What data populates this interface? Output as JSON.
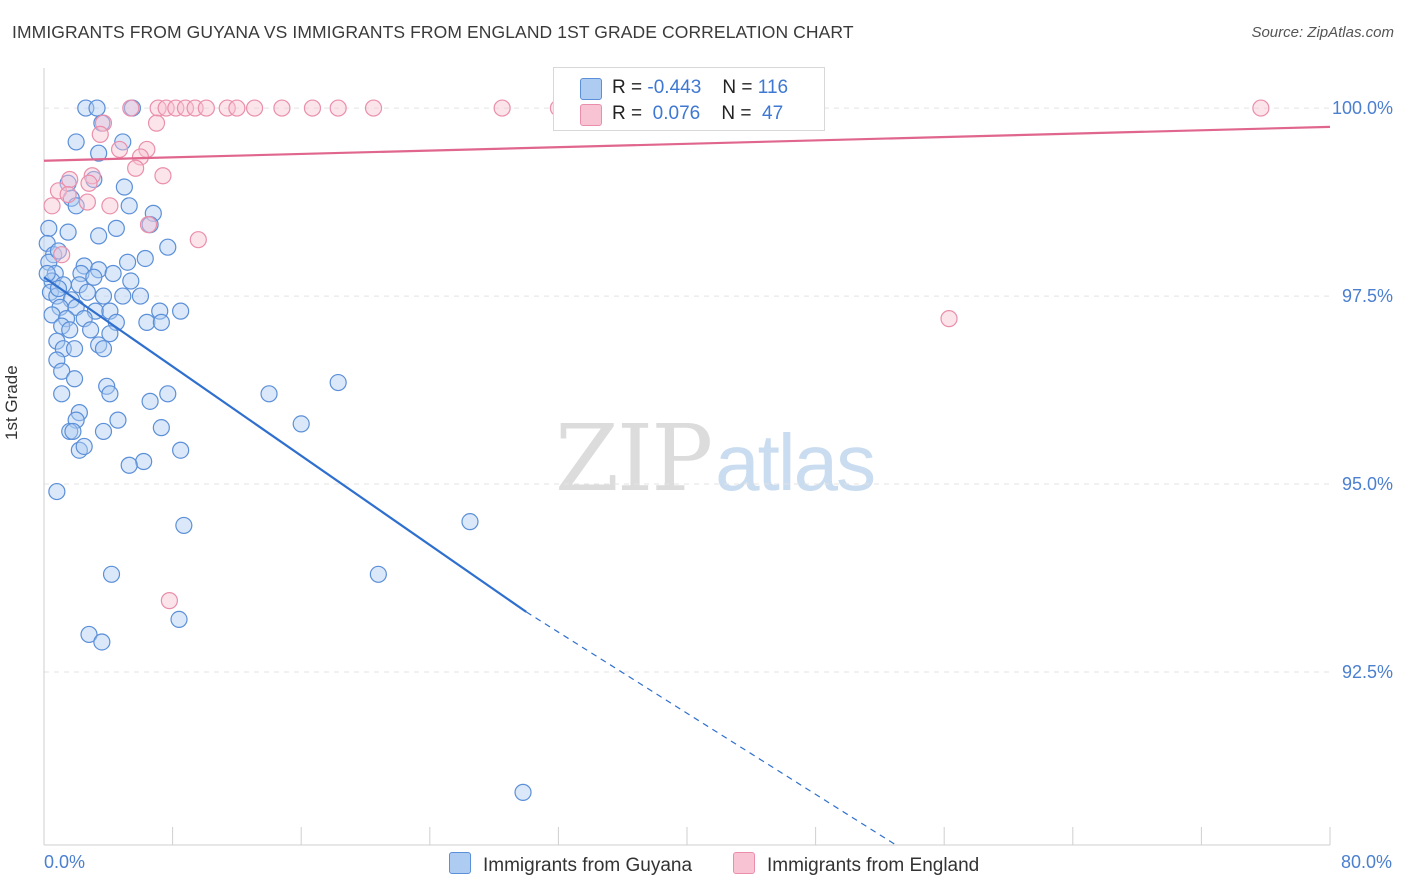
{
  "title": "IMMIGRANTS FROM GUYANA VS IMMIGRANTS FROM ENGLAND 1ST GRADE CORRELATION CHART",
  "source": "Source: ZipAtlas.com",
  "watermark": {
    "zip": "ZIP",
    "atlas": "atlas"
  },
  "legend": {
    "r_label": "R =",
    "n_label": "N =",
    "series": [
      {
        "name": "Immigrants from Guyana",
        "r": "-0.443",
        "n": "116"
      },
      {
        "name": "Immigrants from England",
        "r": "0.076",
        "n": "47"
      }
    ]
  },
  "colors": {
    "blue_fill": "#aecbf2",
    "blue_stroke": "#5b8fd8",
    "blue_line": "#2f6fce",
    "pink_fill": "#f8c3d2",
    "pink_stroke": "#ea8fab",
    "pink_line": "#e0668e",
    "tick_label": "#4b7fcf",
    "grid": "#e3e3e3"
  },
  "chart_data": {
    "type": "scatter",
    "xlabel": "",
    "ylabel": "1st Grade",
    "xlim": [
      0,
      80
    ],
    "ylim": [
      90.2,
      100.4
    ],
    "x_tick_labels": {
      "min": "0.0%",
      "max": "80.0%"
    },
    "y_ticks": [
      {
        "value": 100.0,
        "label": "100.0%"
      },
      {
        "value": 97.5,
        "label": "97.5%"
      },
      {
        "value": 95.0,
        "label": "95.0%"
      },
      {
        "value": 92.5,
        "label": "92.5%"
      }
    ],
    "series": [
      {
        "name": "Immigrants from Guyana",
        "color": "blue",
        "trend": {
          "x0": 0.0,
          "y0": 97.75,
          "x1": 30.0,
          "y1": 93.3,
          "dash_to_x": 53.0,
          "dash_to_y": 90.2
        },
        "points": [
          [
            2.6,
            100.0
          ],
          [
            3.3,
            100.0
          ],
          [
            5.5,
            100.0
          ],
          [
            3.6,
            99.8
          ],
          [
            2.0,
            99.55
          ],
          [
            4.9,
            99.55
          ],
          [
            3.4,
            99.4
          ],
          [
            3.1,
            99.05
          ],
          [
            1.5,
            99.0
          ],
          [
            5.0,
            98.95
          ],
          [
            1.7,
            98.8
          ],
          [
            2.0,
            98.7
          ],
          [
            5.3,
            98.7
          ],
          [
            6.8,
            98.6
          ],
          [
            0.3,
            98.4
          ],
          [
            3.4,
            98.3
          ],
          [
            4.5,
            98.4
          ],
          [
            1.5,
            98.35
          ],
          [
            6.6,
            98.45
          ],
          [
            0.2,
            98.2
          ],
          [
            0.6,
            98.05
          ],
          [
            7.7,
            98.15
          ],
          [
            0.3,
            97.95
          ],
          [
            2.5,
            97.9
          ],
          [
            5.2,
            97.95
          ],
          [
            3.4,
            97.85
          ],
          [
            6.3,
            98.0
          ],
          [
            0.7,
            97.8
          ],
          [
            2.3,
            97.8
          ],
          [
            3.1,
            97.75
          ],
          [
            4.3,
            97.8
          ],
          [
            0.5,
            97.7
          ],
          [
            1.2,
            97.65
          ],
          [
            2.2,
            97.65
          ],
          [
            5.4,
            97.7
          ],
          [
            0.4,
            97.55
          ],
          [
            0.8,
            97.5
          ],
          [
            1.7,
            97.45
          ],
          [
            3.7,
            97.5
          ],
          [
            4.9,
            97.5
          ],
          [
            6.0,
            97.5
          ],
          [
            1.0,
            97.35
          ],
          [
            2.0,
            97.35
          ],
          [
            3.2,
            97.3
          ],
          [
            4.1,
            97.3
          ],
          [
            7.2,
            97.3
          ],
          [
            0.5,
            97.25
          ],
          [
            1.4,
            97.2
          ],
          [
            2.5,
            97.2
          ],
          [
            4.5,
            97.15
          ],
          [
            6.4,
            97.15
          ],
          [
            7.3,
            97.15
          ],
          [
            8.5,
            97.3
          ],
          [
            1.1,
            97.1
          ],
          [
            1.6,
            97.05
          ],
          [
            2.9,
            97.05
          ],
          [
            4.1,
            97.0
          ],
          [
            0.8,
            96.9
          ],
          [
            1.2,
            96.8
          ],
          [
            1.9,
            96.8
          ],
          [
            3.4,
            96.85
          ],
          [
            3.7,
            96.8
          ],
          [
            0.8,
            96.65
          ],
          [
            1.1,
            96.5
          ],
          [
            1.9,
            96.4
          ],
          [
            3.9,
            96.3
          ],
          [
            1.1,
            96.2
          ],
          [
            4.1,
            96.2
          ],
          [
            7.7,
            96.2
          ],
          [
            14.0,
            96.2
          ],
          [
            18.3,
            96.35
          ],
          [
            6.6,
            96.1
          ],
          [
            2.2,
            95.95
          ],
          [
            2.0,
            95.85
          ],
          [
            4.6,
            95.85
          ],
          [
            7.3,
            95.75
          ],
          [
            16.0,
            95.8
          ],
          [
            1.6,
            95.7
          ],
          [
            1.8,
            95.7
          ],
          [
            3.7,
            95.7
          ],
          [
            2.2,
            95.45
          ],
          [
            2.5,
            95.5
          ],
          [
            6.2,
            95.3
          ],
          [
            8.5,
            95.45
          ],
          [
            5.3,
            95.25
          ],
          [
            0.8,
            94.9
          ],
          [
            8.7,
            94.45
          ],
          [
            26.5,
            94.5
          ],
          [
            4.2,
            93.8
          ],
          [
            20.8,
            93.8
          ],
          [
            8.4,
            93.2
          ],
          [
            2.8,
            93.0
          ],
          [
            3.6,
            92.9
          ],
          [
            29.8,
            90.9
          ],
          [
            0.9,
            97.6
          ],
          [
            2.7,
            97.55
          ],
          [
            0.2,
            97.8
          ],
          [
            0.9,
            98.1
          ]
        ]
      },
      {
        "name": "Immigrants from England",
        "color": "pink",
        "trend": {
          "x0": 0.0,
          "y0": 99.3,
          "x1": 80.0,
          "y1": 99.75
        },
        "points": [
          [
            5.4,
            100.0
          ],
          [
            7.1,
            100.0
          ],
          [
            7.6,
            100.0
          ],
          [
            8.2,
            100.0
          ],
          [
            8.8,
            100.0
          ],
          [
            9.4,
            100.0
          ],
          [
            10.1,
            100.0
          ],
          [
            11.4,
            100.0
          ],
          [
            12.0,
            100.0
          ],
          [
            13.1,
            100.0
          ],
          [
            14.8,
            100.0
          ],
          [
            16.7,
            100.0
          ],
          [
            18.3,
            100.0
          ],
          [
            20.5,
            100.0
          ],
          [
            28.5,
            100.0
          ],
          [
            32.0,
            100.0
          ],
          [
            75.7,
            100.0
          ],
          [
            3.7,
            99.8
          ],
          [
            7.0,
            99.8
          ],
          [
            3.5,
            99.65
          ],
          [
            4.7,
            99.45
          ],
          [
            6.4,
            99.45
          ],
          [
            6.0,
            99.35
          ],
          [
            5.7,
            99.2
          ],
          [
            7.4,
            99.1
          ],
          [
            3.0,
            99.1
          ],
          [
            1.6,
            99.05
          ],
          [
            2.8,
            99.0
          ],
          [
            0.9,
            98.9
          ],
          [
            1.5,
            98.85
          ],
          [
            2.7,
            98.75
          ],
          [
            4.1,
            98.7
          ],
          [
            0.5,
            98.7
          ],
          [
            6.5,
            98.45
          ],
          [
            9.6,
            98.25
          ],
          [
            1.1,
            98.05
          ],
          [
            56.3,
            97.2
          ],
          [
            7.8,
            93.45
          ]
        ]
      }
    ]
  }
}
